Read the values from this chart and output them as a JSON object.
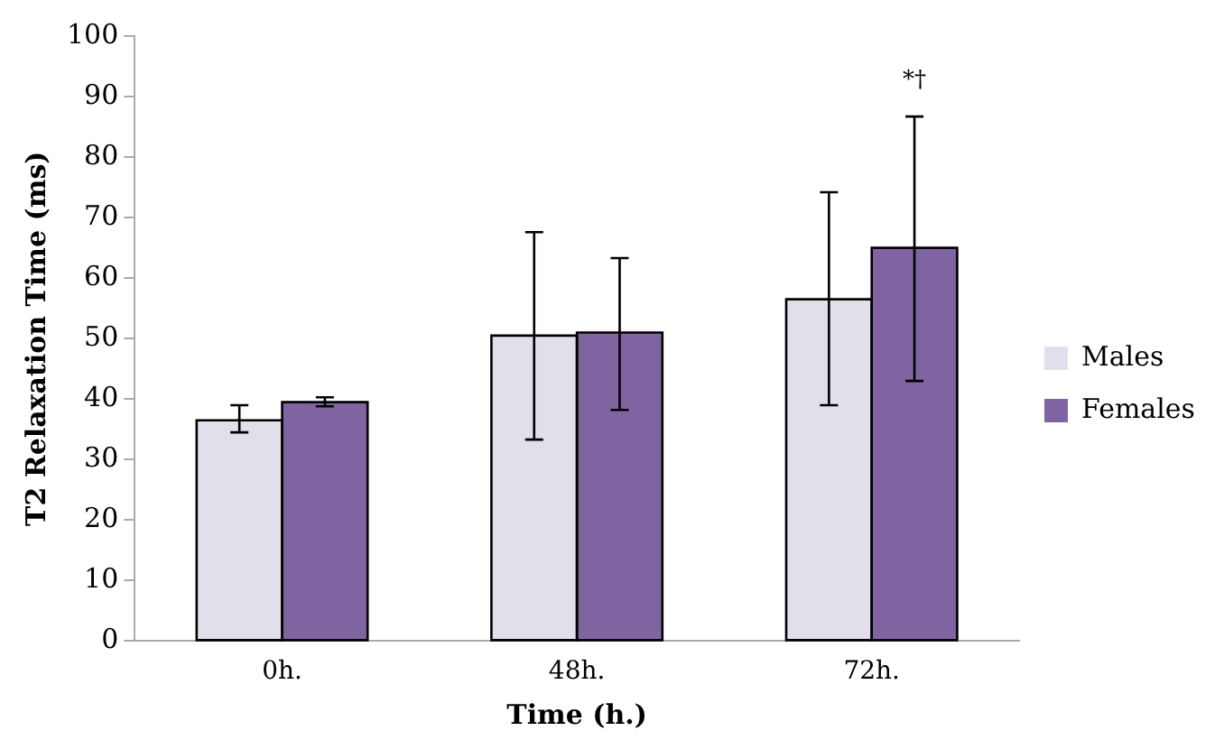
{
  "chart_data": {
    "type": "bar",
    "xlabel": "Time (h.)",
    "ylabel": "T2 Relaxation Time (ms)",
    "categories": [
      "0h.",
      "48h.",
      "72h."
    ],
    "series": [
      {
        "name": "Males",
        "color": "#e3dfea",
        "values": [
          36.5,
          50.5,
          56.5
        ],
        "errors": [
          [
            34.5,
            39
          ],
          [
            33.3,
            67.6
          ],
          [
            39,
            74.2
          ]
        ]
      },
      {
        "name": "Females",
        "color": "#8064a2",
        "values": [
          39.5,
          51,
          65
        ],
        "errors": [
          [
            38.8,
            40.3
          ],
          [
            38.2,
            63.3
          ],
          [
            43,
            86.7
          ]
        ]
      }
    ],
    "ylim": [
      0,
      100
    ],
    "yticks": [
      0,
      10,
      20,
      30,
      40,
      50,
      60,
      70,
      80,
      90,
      100
    ],
    "grid": false,
    "legend": "right",
    "annotations": [
      "*†"
    ]
  }
}
